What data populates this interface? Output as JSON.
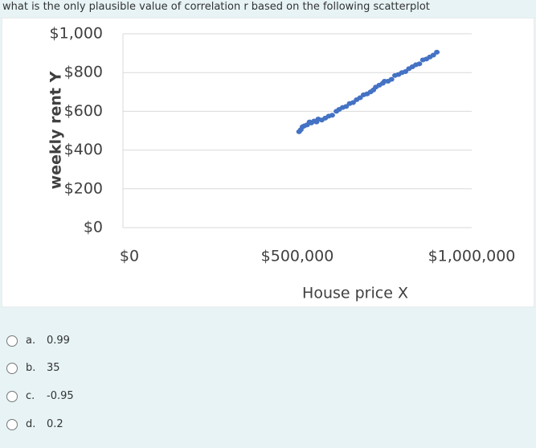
{
  "question": "what is the only plausible value of correlation r based on the following scatterplot",
  "chart_data": {
    "type": "scatter",
    "x_label": "House price X",
    "y_label": "weekly rent Y",
    "color": "#4472c4",
    "grid": true,
    "x": [
      505000,
      510000,
      515000,
      520000,
      528000,
      535000,
      540000,
      548000,
      555000,
      560000,
      570000,
      580000,
      590000,
      600000,
      612000,
      620000,
      630000,
      640000,
      650000,
      660000,
      670000,
      680000,
      690000,
      700000,
      710000,
      718000,
      725000,
      735000,
      745000,
      750000,
      760000,
      770000,
      780000,
      790000,
      800000,
      810000,
      820000,
      830000,
      840000,
      850000,
      860000,
      870000,
      880000,
      890000,
      900000
    ],
    "values": [
      495,
      505,
      520,
      525,
      530,
      545,
      540,
      550,
      545,
      560,
      555,
      565,
      575,
      580,
      600,
      610,
      620,
      625,
      640,
      645,
      660,
      670,
      685,
      690,
      700,
      710,
      725,
      735,
      745,
      755,
      755,
      765,
      785,
      790,
      800,
      805,
      820,
      830,
      840,
      845,
      865,
      870,
      880,
      890,
      905
    ],
    "xlim": [
      0,
      1000000
    ],
    "xticks": [
      {
        "value": 0,
        "label": "$0"
      },
      {
        "value": 500000,
        "label": "$500,000"
      },
      {
        "value": 1000000,
        "label": "$1,000,000"
      }
    ],
    "ylim": [
      0,
      1000
    ],
    "yticks": [
      {
        "value": 0,
        "label": "$0"
      },
      {
        "value": 200,
        "label": "$200"
      },
      {
        "value": 400,
        "label": "$400"
      },
      {
        "value": 600,
        "label": "$600"
      },
      {
        "value": 800,
        "label": "$800"
      },
      {
        "value": 1000,
        "label": "$1,000"
      }
    ]
  },
  "options": [
    {
      "letter": "a.",
      "text": "0.99"
    },
    {
      "letter": "b.",
      "text": "35"
    },
    {
      "letter": "c.",
      "text": "-0.95"
    },
    {
      "letter": "d.",
      "text": "0.2"
    }
  ]
}
